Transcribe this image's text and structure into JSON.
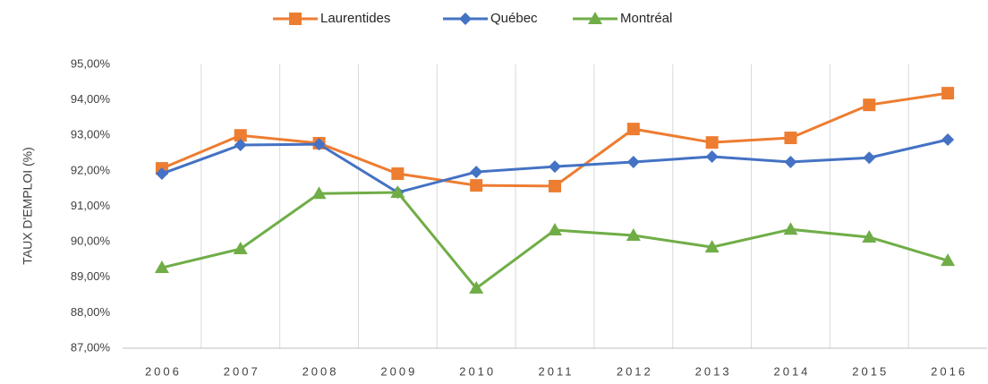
{
  "chart_data": {
    "type": "line",
    "y_label": "TAUX D'EMPLOI (%)",
    "categories": [
      "2006",
      "2007",
      "2008",
      "2009",
      "2010",
      "2011",
      "2012",
      "2013",
      "2014",
      "2015",
      "2016"
    ],
    "series": [
      {
        "name": "Laurentides",
        "color": "#ED7D31",
        "marker": "square",
        "values": [
          92.07,
          93.0,
          92.78,
          91.92,
          91.59,
          91.57,
          93.18,
          92.8,
          92.93,
          93.86,
          94.19
        ]
      },
      {
        "name": "Québec",
        "color": "#4472C4",
        "marker": "diamond",
        "values": [
          91.92,
          92.73,
          92.75,
          91.39,
          91.97,
          92.12,
          92.25,
          92.4,
          92.25,
          92.37,
          92.88
        ]
      },
      {
        "name": "Montréal",
        "color": "#70AD47",
        "marker": "triangle",
        "values": [
          89.27,
          89.8,
          91.36,
          91.39,
          88.69,
          90.33,
          90.18,
          89.85,
          90.35,
          90.13,
          89.47
        ]
      }
    ],
    "ylim": [
      87,
      95
    ],
    "yticks": [
      {
        "value": 87,
        "label": "87,00%"
      },
      {
        "value": 88,
        "label": "88,00%"
      },
      {
        "value": 89,
        "label": "89,00%"
      },
      {
        "value": 90,
        "label": "90,00%"
      },
      {
        "value": 91,
        "label": "91,00%"
      },
      {
        "value": 92,
        "label": "92,00%"
      },
      {
        "value": 93,
        "label": "93,00%"
      },
      {
        "value": 94,
        "label": "94,00%"
      },
      {
        "value": 95,
        "label": "95,00%"
      }
    ],
    "legend": "top"
  }
}
